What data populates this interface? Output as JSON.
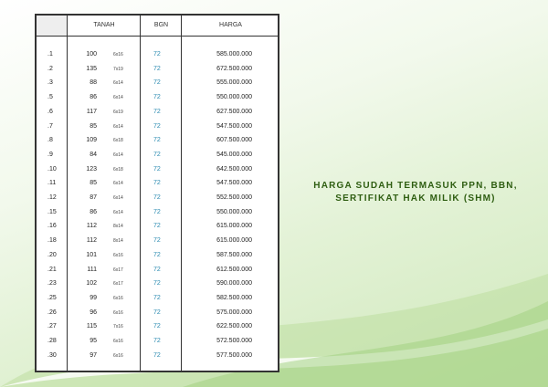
{
  "table": {
    "headers": {
      "tanah": "TANAH",
      "bgn": "BGN",
      "harga": "HARGA"
    },
    "rows": [
      {
        "no": ".1",
        "luas": "100",
        "dim": "6x16",
        "bgn": "72",
        "harga": "585.000.000"
      },
      {
        "no": ".2",
        "luas": "135",
        "dim": "7x19",
        "bgn": "72",
        "harga": "672.500.000"
      },
      {
        "no": ".3",
        "luas": "88",
        "dim": "6x14",
        "bgn": "72",
        "harga": "555.000.000"
      },
      {
        "no": ".5",
        "luas": "86",
        "dim": "6x14",
        "bgn": "72",
        "harga": "550.000.000"
      },
      {
        "no": ".6",
        "luas": "117",
        "dim": "6x19",
        "bgn": "72",
        "harga": "627.500.000"
      },
      {
        "no": ".7",
        "luas": "85",
        "dim": "6x14",
        "bgn": "72",
        "harga": "547.500.000"
      },
      {
        "no": ".8",
        "luas": "109",
        "dim": "6x18",
        "bgn": "72",
        "harga": "607.500.000"
      },
      {
        "no": ".9",
        "luas": "84",
        "dim": "6x14",
        "bgn": "72",
        "harga": "545.000.000"
      },
      {
        "no": ".10",
        "luas": "123",
        "dim": "6x18",
        "bgn": "72",
        "harga": "642.500.000"
      },
      {
        "no": ".11",
        "luas": "85",
        "dim": "6x14",
        "bgn": "72",
        "harga": "547.500.000"
      },
      {
        "no": ".12",
        "luas": "87",
        "dim": "6x14",
        "bgn": "72",
        "harga": "552.500.000"
      },
      {
        "no": ".15",
        "luas": "86",
        "dim": "6x14",
        "bgn": "72",
        "harga": "550.000.000"
      },
      {
        "no": ".16",
        "luas": "112",
        "dim": "8x14",
        "bgn": "72",
        "harga": "615.000.000"
      },
      {
        "no": ".18",
        "luas": "112",
        "dim": "8x14",
        "bgn": "72",
        "harga": "615.000.000"
      },
      {
        "no": ".20",
        "luas": "101",
        "dim": "6x16",
        "bgn": "72",
        "harga": "587.500.000"
      },
      {
        "no": ".21",
        "luas": "111",
        "dim": "6x17",
        "bgn": "72",
        "harga": "612.500.000"
      },
      {
        "no": ".23",
        "luas": "102",
        "dim": "6x17",
        "bgn": "72",
        "harga": "590.000.000"
      },
      {
        "no": ".25",
        "luas": "99",
        "dim": "6x16",
        "bgn": "72",
        "harga": "582.500.000"
      },
      {
        "no": ".26",
        "luas": "96",
        "dim": "6x16",
        "bgn": "72",
        "harga": "575.000.000"
      },
      {
        "no": ".27",
        "luas": "115",
        "dim": "7x16",
        "bgn": "72",
        "harga": "622.500.000"
      },
      {
        "no": ".28",
        "luas": "95",
        "dim": "6x16",
        "bgn": "72",
        "harga": "572.500.000"
      },
      {
        "no": ".30",
        "luas": "97",
        "dim": "6x16",
        "bgn": "72",
        "harga": "577.500.000"
      }
    ]
  },
  "note": {
    "line1": "HARGA SUDAH TERMASUK PPN, BBN,",
    "line2": "SERTIFIKAT HAK MILIK (SHM)"
  },
  "colors": {
    "note_text": "#2f5e12",
    "bgn_text": "#2a8ab0",
    "background": "#e3f2d6"
  }
}
